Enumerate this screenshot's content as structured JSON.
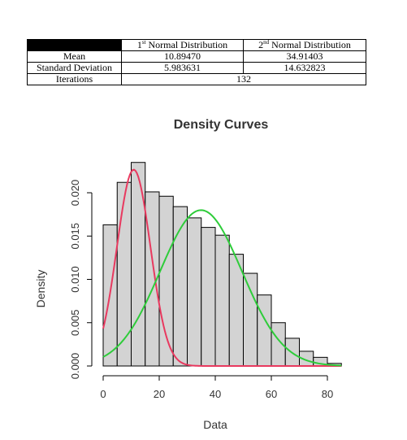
{
  "table": {
    "headers": [
      {
        "label": "1",
        "sup": "st",
        "rest": " Normal Distribution"
      },
      {
        "label": "2",
        "sup": "nd",
        "rest": " Normal Distribution"
      }
    ],
    "rows": [
      {
        "label": "Mean",
        "values": [
          "10.89470",
          "34.91403"
        ]
      },
      {
        "label": "Standard Deviation",
        "values": [
          "5.983631",
          "14.632823"
        ]
      }
    ],
    "iterations": {
      "label": "Iterations",
      "value": "132"
    }
  },
  "chart_data": {
    "type": "histogram",
    "title": "Density Curves",
    "xlabel": "Data",
    "ylabel": "Density",
    "xlim": [
      0,
      85
    ],
    "ylim": [
      0,
      0.024
    ],
    "x_ticks": [
      0,
      20,
      40,
      60,
      80
    ],
    "x_tick_labels": [
      "0",
      "20",
      "40",
      "60",
      "80"
    ],
    "y_ticks": [
      0,
      0.005,
      0.01,
      0.015,
      0.02
    ],
    "y_tick_labels": [
      "0.000",
      "0.005",
      "0.010",
      "0.015",
      "0.020"
    ],
    "bin_width": 5,
    "bins": [
      {
        "x0": 0,
        "x1": 5,
        "density": 0.0163
      },
      {
        "x0": 5,
        "x1": 10,
        "density": 0.0212
      },
      {
        "x0": 10,
        "x1": 15,
        "density": 0.0235
      },
      {
        "x0": 15,
        "x1": 20,
        "density": 0.0201
      },
      {
        "x0": 20,
        "x1": 25,
        "density": 0.0196
      },
      {
        "x0": 25,
        "x1": 30,
        "density": 0.0184
      },
      {
        "x0": 30,
        "x1": 35,
        "density": 0.0171
      },
      {
        "x0": 35,
        "x1": 40,
        "density": 0.016
      },
      {
        "x0": 40,
        "x1": 45,
        "density": 0.0151
      },
      {
        "x0": 45,
        "x1": 50,
        "density": 0.0129
      },
      {
        "x0": 50,
        "x1": 55,
        "density": 0.0107
      },
      {
        "x0": 55,
        "x1": 60,
        "density": 0.0082
      },
      {
        "x0": 60,
        "x1": 65,
        "density": 0.005
      },
      {
        "x0": 65,
        "x1": 70,
        "density": 0.0032
      },
      {
        "x0": 70,
        "x1": 75,
        "density": 0.0017
      },
      {
        "x0": 75,
        "x1": 80,
        "density": 0.001
      },
      {
        "x0": 80,
        "x1": 85,
        "density": 0.0003
      }
    ],
    "bar_fill": "#d3d3d3",
    "bar_stroke": "#000000",
    "curves": [
      {
        "mean": 10.8947,
        "sd": 5.983631,
        "weight": 0.34,
        "color": "#e8395f"
      },
      {
        "mean": 34.91403,
        "sd": 14.632823,
        "weight": 0.66,
        "color": "#2ecc3a"
      }
    ]
  }
}
